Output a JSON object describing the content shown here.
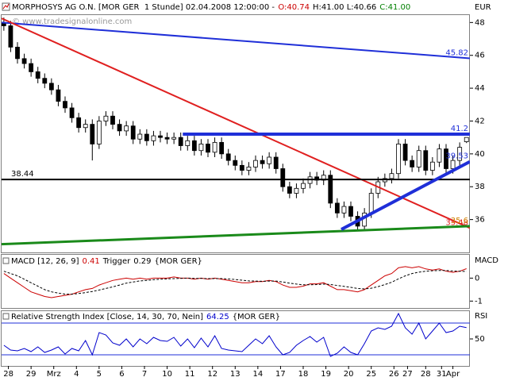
{
  "chart_data": [
    {
      "type": "candlestick",
      "title": "MORPHOSYS AG O.N. [MOR GER  1 Stunde] 02.04.2008 12:00:00 -",
      "ohlc": [
        "O:40.74",
        "H:41.00 L:40.66",
        "C:41.00"
      ],
      "ohlc_colors": [
        "#cc0000",
        "#000000",
        "#008000"
      ],
      "watermark": "© www.tradesignalonline.com",
      "y_unit": "EUR",
      "up_color": "#ffffff",
      "down_color": "#000000",
      "wick_color": "#000000",
      "xlim": [
        -0.3,
        20.35
      ],
      "ylim": [
        34,
        48.5
      ],
      "yticks": [
        36,
        38,
        40,
        42,
        44,
        46,
        48
      ],
      "x": [
        -0.2,
        0.1,
        0.4,
        0.7,
        1,
        1.3,
        1.6,
        1.9,
        2.2,
        2.5,
        2.8,
        3.1,
        3.4,
        3.7,
        4,
        4.3,
        4.6,
        4.9,
        5.2,
        5.5,
        5.8,
        6.1,
        6.4,
        6.7,
        7,
        7.3,
        7.6,
        7.9,
        8.2,
        8.5,
        8.8,
        9.1,
        9.4,
        9.7,
        10,
        10.3,
        10.6,
        10.9,
        11.2,
        11.5,
        11.8,
        12.1,
        12.4,
        12.7,
        13,
        13.3,
        13.6,
        13.9,
        14.2,
        14.5,
        14.8,
        15.1,
        15.4,
        15.7,
        16,
        16.3,
        16.6,
        16.9,
        17.2,
        17.5,
        17.8,
        18.1,
        18.4,
        18.7,
        19,
        19.3,
        19.6,
        19.9,
        20.2
      ],
      "open": [
        48.0,
        47.8,
        46.5,
        45.8,
        45.5,
        45.0,
        44.6,
        44.3,
        43.9,
        43.2,
        42.8,
        42.2,
        41.6,
        41.8,
        40.6,
        42.0,
        42.3,
        41.8,
        41.4,
        41.7,
        40.9,
        41.2,
        40.8,
        41.1,
        41.0,
        40.9,
        41.0,
        40.5,
        40.8,
        40.2,
        40.6,
        40.1,
        40.7,
        40.0,
        39.6,
        39.3,
        39.0,
        39.2,
        39.6,
        39.4,
        39.8,
        39.1,
        38.0,
        37.6,
        37.9,
        38.2,
        38.6,
        38.4,
        38.7,
        37.0,
        36.4,
        36.8,
        36.2,
        35.6,
        36.4,
        37.6,
        38.3,
        38.5,
        38.8,
        40.6,
        39.6,
        39.2,
        40.2,
        39.0,
        39.5,
        40.3,
        39.1,
        39.6,
        40.74
      ],
      "high": [
        48.3,
        48.1,
        46.8,
        46.1,
        45.8,
        45.3,
        44.9,
        44.6,
        44.2,
        43.5,
        43.1,
        42.5,
        42.1,
        42.1,
        42.3,
        42.6,
        42.6,
        42.1,
        42.0,
        42.0,
        41.5,
        41.5,
        41.4,
        41.4,
        41.3,
        41.3,
        41.3,
        41.1,
        41.1,
        40.9,
        40.9,
        41.0,
        41.0,
        40.3,
        39.9,
        39.6,
        39.5,
        39.9,
        39.9,
        40.1,
        40.1,
        39.4,
        38.3,
        38.2,
        38.5,
        38.9,
        38.9,
        39.0,
        39.0,
        37.3,
        37.1,
        37.1,
        36.5,
        36.7,
        37.9,
        38.6,
        38.8,
        39.1,
        40.9,
        40.9,
        39.9,
        40.5,
        40.5,
        39.8,
        40.6,
        40.6,
        39.9,
        40.7,
        41.0
      ],
      "low": [
        47.5,
        46.2,
        45.5,
        45.2,
        44.7,
        44.3,
        44.0,
        43.6,
        42.9,
        42.5,
        41.9,
        41.3,
        41.3,
        39.6,
        40.3,
        41.7,
        41.5,
        41.1,
        41.1,
        40.6,
        40.6,
        40.5,
        40.5,
        40.7,
        40.6,
        40.6,
        40.2,
        40.2,
        39.9,
        39.9,
        39.8,
        39.8,
        39.7,
        39.3,
        39.0,
        38.7,
        38.7,
        38.9,
        39.1,
        39.1,
        38.8,
        37.7,
        37.3,
        37.3,
        37.6,
        37.9,
        38.1,
        38.1,
        36.7,
        36.1,
        36.1,
        35.9,
        35.3,
        35.3,
        36.1,
        37.3,
        38.0,
        38.2,
        38.5,
        39.3,
        38.9,
        38.9,
        38.7,
        38.7,
        39.2,
        38.8,
        38.8,
        39.3,
        40.66
      ],
      "close": [
        47.8,
        46.5,
        45.8,
        45.5,
        45.0,
        44.6,
        44.3,
        43.9,
        43.2,
        42.8,
        42.2,
        41.6,
        41.8,
        40.6,
        42.0,
        42.3,
        41.8,
        41.4,
        41.7,
        40.9,
        41.2,
        40.8,
        41.1,
        41.0,
        40.9,
        41.0,
        40.5,
        40.8,
        40.2,
        40.6,
        40.1,
        40.7,
        40.0,
        39.6,
        39.3,
        39.0,
        39.2,
        39.6,
        39.4,
        39.8,
        39.1,
        38.0,
        37.6,
        37.9,
        38.2,
        38.6,
        38.4,
        38.7,
        37.0,
        36.4,
        36.8,
        36.2,
        35.6,
        36.4,
        37.6,
        38.3,
        38.5,
        38.8,
        40.6,
        39.6,
        39.2,
        40.2,
        39.0,
        39.5,
        40.3,
        39.1,
        39.6,
        40.4,
        41.0
      ],
      "trendlines": [
        {
          "color": "#1f2fd8",
          "width": 2,
          "x": [
            -0.3,
            20.35
          ],
          "y": [
            48.0,
            45.82
          ],
          "label_at": "end"
        },
        {
          "color": "#e02020",
          "width": 2,
          "x": [
            -0.3,
            20.35
          ],
          "y": [
            48.25,
            35.48
          ],
          "label_at": "end"
        },
        {
          "color": "#000000",
          "width": 2,
          "x": [
            -0.3,
            20.35
          ],
          "y": [
            38.44,
            38.44
          ],
          "label_at": "start"
        },
        {
          "color": "#1f2fd8",
          "width": 4,
          "x": [
            7.69,
            20.35
          ],
          "y": [
            41.2,
            41.2
          ],
          "label_at": "end"
        },
        {
          "color": "#1a8a1a",
          "width": 3,
          "x": [
            -0.3,
            20.35
          ],
          "y": [
            34.5,
            35.6
          ],
          "label_at": "end"
        },
        {
          "color": "#1f2fd8",
          "width": 4,
          "x": [
            14.68,
            20.35
          ],
          "y": [
            35.4,
            39.53
          ],
          "label_at": "end"
        }
      ]
    },
    {
      "type": "line",
      "axis_label": "MACD",
      "note": "{MOR GER}",
      "xlim": [
        -0.3,
        20.35
      ],
      "ylim": [
        -1.3,
        1.05
      ],
      "yticks": [
        0,
        -1
      ],
      "x": [
        -0.2,
        0.1,
        0.4,
        0.7,
        1,
        1.3,
        1.6,
        1.9,
        2.2,
        2.5,
        2.8,
        3.1,
        3.4,
        3.7,
        4,
        4.3,
        4.6,
        4.9,
        5.2,
        5.5,
        5.8,
        6.1,
        6.4,
        6.7,
        7,
        7.3,
        7.6,
        7.9,
        8.2,
        8.5,
        8.8,
        9.1,
        9.4,
        9.7,
        10,
        10.3,
        10.6,
        10.9,
        11.2,
        11.5,
        11.8,
        12.1,
        12.4,
        12.7,
        13,
        13.3,
        13.6,
        13.9,
        14.2,
        14.5,
        14.8,
        15.1,
        15.4,
        15.7,
        16,
        16.3,
        16.6,
        16.9,
        17.2,
        17.5,
        17.8,
        18.1,
        18.4,
        18.7,
        19,
        19.3,
        19.6,
        19.9,
        20.2
      ],
      "series": [
        {
          "name": "MACD [12, 26, 9]",
          "color": "#cc0000",
          "dash": false,
          "values": [
            0.2,
            0.0,
            -0.2,
            -0.4,
            -0.6,
            -0.7,
            -0.8,
            -0.85,
            -0.8,
            -0.75,
            -0.7,
            -0.6,
            -0.5,
            -0.45,
            -0.3,
            -0.2,
            -0.1,
            -0.05,
            0.0,
            -0.05,
            0.0,
            -0.05,
            0.0,
            0.0,
            0.0,
            0.05,
            0.0,
            0.0,
            -0.05,
            0.0,
            -0.05,
            0.0,
            -0.05,
            -0.1,
            -0.15,
            -0.2,
            -0.2,
            -0.15,
            -0.15,
            -0.1,
            -0.15,
            -0.3,
            -0.4,
            -0.4,
            -0.35,
            -0.25,
            -0.25,
            -0.2,
            -0.35,
            -0.5,
            -0.5,
            -0.55,
            -0.6,
            -0.5,
            -0.3,
            -0.1,
            0.1,
            0.2,
            0.45,
            0.5,
            0.45,
            0.5,
            0.4,
            0.35,
            0.4,
            0.3,
            0.25,
            0.3,
            0.41
          ]
        },
        {
          "name": "Trigger",
          "color": "#000000",
          "dash": true,
          "values": [
            0.3,
            0.2,
            0.1,
            -0.05,
            -0.2,
            -0.35,
            -0.5,
            -0.6,
            -0.65,
            -0.7,
            -0.7,
            -0.67,
            -0.63,
            -0.58,
            -0.52,
            -0.45,
            -0.38,
            -0.3,
            -0.22,
            -0.17,
            -0.12,
            -0.1,
            -0.07,
            -0.05,
            -0.03,
            -0.02,
            -0.01,
            0.0,
            -0.01,
            -0.01,
            -0.02,
            -0.02,
            -0.02,
            -0.04,
            -0.06,
            -0.09,
            -0.12,
            -0.13,
            -0.14,
            -0.13,
            -0.13,
            -0.17,
            -0.22,
            -0.26,
            -0.29,
            -0.29,
            -0.28,
            -0.26,
            -0.28,
            -0.32,
            -0.36,
            -0.4,
            -0.45,
            -0.47,
            -0.44,
            -0.37,
            -0.28,
            -0.18,
            -0.03,
            0.1,
            0.2,
            0.26,
            0.3,
            0.32,
            0.33,
            0.33,
            0.31,
            0.3,
            0.29
          ]
        }
      ]
    },
    {
      "type": "line",
      "axis_label": "RSI",
      "note": "{MOR GER}",
      "xlim": [
        -0.3,
        20.35
      ],
      "ylim": [
        16,
        86
      ],
      "yticks": [
        50
      ],
      "levels": [
        30,
        70
      ],
      "level_color": "#1f2fd8",
      "xticks": [
        {
          "value": 0,
          "label": "28"
        },
        {
          "value": 1,
          "label": "29"
        },
        {
          "value": 2,
          "label": "Mrz"
        },
        {
          "value": 3,
          "label": "4"
        },
        {
          "value": 4,
          "label": "5"
        },
        {
          "value": 5,
          "label": "6"
        },
        {
          "value": 6,
          "label": "7"
        },
        {
          "value": 7,
          "label": "10"
        },
        {
          "value": 8,
          "label": "11"
        },
        {
          "value": 9,
          "label": "12"
        },
        {
          "value": 10,
          "label": "13"
        },
        {
          "value": 11,
          "label": "14"
        },
        {
          "value": 12,
          "label": "17"
        },
        {
          "value": 13,
          "label": "18"
        },
        {
          "value": 14,
          "label": "19"
        },
        {
          "value": 15,
          "label": "20"
        },
        {
          "value": 16,
          "label": "25"
        },
        {
          "value": 17,
          "label": "26"
        },
        {
          "value": 17.6,
          "label": "27"
        },
        {
          "value": 18.4,
          "label": "28"
        },
        {
          "value": 19.1,
          "label": "31"
        },
        {
          "value": 19.6,
          "label": "Apr"
        }
      ],
      "x": [
        -0.2,
        0.1,
        0.4,
        0.7,
        1,
        1.3,
        1.6,
        1.9,
        2.2,
        2.5,
        2.8,
        3.1,
        3.4,
        3.7,
        4,
        4.3,
        4.6,
        4.9,
        5.2,
        5.5,
        5.8,
        6.1,
        6.4,
        6.7,
        7,
        7.3,
        7.6,
        7.9,
        8.2,
        8.5,
        8.8,
        9.1,
        9.4,
        9.7,
        10,
        10.3,
        10.6,
        10.9,
        11.2,
        11.5,
        11.8,
        12.1,
        12.4,
        12.7,
        13,
        13.3,
        13.6,
        13.9,
        14.2,
        14.5,
        14.8,
        15.1,
        15.4,
        15.7,
        16,
        16.3,
        16.6,
        16.9,
        17.2,
        17.5,
        17.8,
        18.1,
        18.4,
        18.7,
        19,
        19.3,
        19.6,
        19.9,
        20.2
      ],
      "series": [
        {
          "name": "Relative Strength Index [Close, 14, 30, 70, Nein]",
          "color": "#0000cc",
          "dash": false,
          "values": [
            42,
            36,
            35,
            38,
            34,
            40,
            33,
            36,
            40,
            31,
            38,
            35,
            48,
            30,
            58,
            55,
            45,
            42,
            50,
            40,
            50,
            44,
            52,
            48,
            47,
            52,
            41,
            50,
            39,
            51,
            40,
            54,
            38,
            36,
            35,
            34,
            42,
            50,
            44,
            54,
            40,
            30,
            33,
            42,
            48,
            53,
            46,
            52,
            28,
            32,
            40,
            33,
            30,
            44,
            60,
            64,
            62,
            66,
            82,
            64,
            56,
            70,
            50,
            60,
            70,
            58,
            60,
            66,
            64.25
          ]
        }
      ]
    }
  ]
}
